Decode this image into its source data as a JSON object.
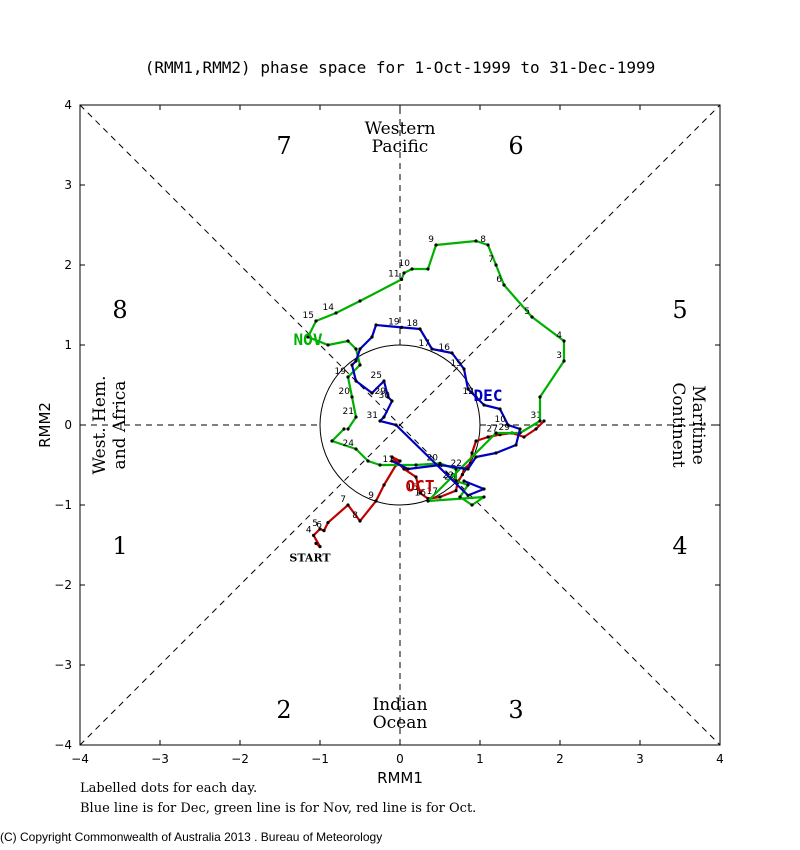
{
  "chart_data": {
    "type": "line",
    "title": "(RMM1,RMM2) phase space for  1-Oct-1999 to 31-Dec-1999",
    "xlabel": "RMM1",
    "ylabel": "RMM2",
    "xlim": [
      -4,
      4
    ],
    "ylim": [
      -4,
      4
    ],
    "xticks": [
      "−4",
      "−3",
      "−2",
      "−1",
      "0",
      "1",
      "2",
      "3",
      "4"
    ],
    "yticks": [
      "−4",
      "−3",
      "−2",
      "−1",
      "0",
      "1",
      "2",
      "3",
      "4"
    ],
    "phases": [
      {
        "label": "1",
        "x": -3.5,
        "y": -1.5
      },
      {
        "label": "2",
        "x": -1.45,
        "y": -3.55
      },
      {
        "label": "3",
        "x": 1.45,
        "y": -3.55
      },
      {
        "label": "4",
        "x": 3.5,
        "y": -1.5
      },
      {
        "label": "5",
        "x": 3.5,
        "y": 1.45
      },
      {
        "label": "6",
        "x": 1.45,
        "y": 3.5
      },
      {
        "label": "7",
        "x": -1.45,
        "y": 3.5
      },
      {
        "label": "8",
        "x": -3.5,
        "y": 1.45
      }
    ],
    "regions": {
      "top": [
        "Western",
        "Pacific"
      ],
      "bottom": [
        "Indian",
        "Ocean"
      ],
      "left": [
        "West. Hem.",
        "and Africa"
      ],
      "right": [
        "Maritime",
        "Continent"
      ]
    },
    "start_label": "START",
    "series": [
      {
        "name": "Oct",
        "label": "OCT",
        "color": "#c00000",
        "label_pos": [
          0.25,
          -0.83
        ],
        "points": [
          [
            -1.05,
            -1.48
          ],
          [
            -1.0,
            -1.52
          ],
          [
            -1.08,
            -1.38
          ],
          [
            -1.0,
            -1.3
          ],
          [
            -0.95,
            -1.32
          ],
          [
            -0.9,
            -1.22
          ],
          [
            -0.65,
            -1.0
          ],
          [
            -0.5,
            -1.2
          ],
          [
            -0.3,
            -0.95
          ],
          [
            -0.2,
            -0.75
          ],
          [
            -0.05,
            -0.5
          ],
          [
            0.0,
            -0.45
          ],
          [
            -0.1,
            -0.4
          ],
          [
            0.05,
            -0.55
          ],
          [
            0.2,
            -0.65
          ],
          [
            0.25,
            -0.85
          ],
          [
            0.35,
            -0.92
          ],
          [
            0.5,
            -0.9
          ],
          [
            0.7,
            -0.82
          ],
          [
            0.72,
            -0.72
          ],
          [
            0.78,
            -0.62
          ],
          [
            0.8,
            -0.55
          ],
          [
            0.88,
            -0.48
          ],
          [
            0.9,
            -0.35
          ],
          [
            0.95,
            -0.2
          ],
          [
            1.1,
            -0.15
          ],
          [
            1.25,
            -0.12
          ],
          [
            1.4,
            -0.1
          ],
          [
            1.55,
            -0.15
          ],
          [
            1.7,
            -0.05
          ],
          [
            1.8,
            0.05
          ]
        ],
        "labels": [
          {
            "t": "4",
            "i": 2
          },
          {
            "t": "5",
            "i": 3
          },
          {
            "t": "6",
            "i": 4
          },
          {
            "t": "7",
            "i": 6
          },
          {
            "t": "8",
            "i": 7
          },
          {
            "t": "9",
            "i": 8
          },
          {
            "t": "11",
            "i": 10
          },
          {
            "t": "15",
            "i": 15
          },
          {
            "t": "16",
            "i": 16
          },
          {
            "t": "17",
            "i": 17
          },
          {
            "t": "20",
            "i": 19
          },
          {
            "t": "22",
            "i": 21
          },
          {
            "t": "27",
            "i": 26
          },
          {
            "t": "29",
            "i": 27
          },
          {
            "t": "31",
            "i": 30
          }
        ]
      },
      {
        "name": "Nov",
        "label": "NOV",
        "color": "#00b000",
        "label_pos": [
          -1.15,
          1.0
        ],
        "points": [
          [
            -0.7,
            -0.05
          ],
          [
            -0.85,
            -0.2
          ],
          [
            -0.55,
            -0.3
          ],
          [
            -0.4,
            -0.45
          ],
          [
            -0.25,
            -0.5
          ],
          [
            0.2,
            -0.5
          ],
          [
            0.5,
            -0.48
          ],
          [
            0.7,
            -0.55
          ],
          [
            0.7,
            -0.7
          ],
          [
            0.85,
            -0.75
          ],
          [
            0.75,
            -0.9
          ],
          [
            0.9,
            -1.0
          ],
          [
            1.05,
            -0.9
          ],
          [
            0.35,
            -0.95
          ],
          [
            1.2,
            -0.1
          ],
          [
            1.5,
            -0.1
          ],
          [
            1.75,
            0.05
          ],
          [
            1.75,
            0.35
          ],
          [
            2.05,
            0.8
          ],
          [
            2.05,
            1.05
          ],
          [
            1.65,
            1.35
          ],
          [
            1.3,
            1.75
          ],
          [
            1.2,
            2.0
          ],
          [
            1.1,
            2.25
          ],
          [
            0.95,
            2.3
          ],
          [
            0.45,
            2.25
          ],
          [
            0.35,
            1.95
          ],
          [
            0.15,
            1.95
          ],
          [
            0.05,
            1.9
          ],
          [
            0.02,
            1.82
          ],
          [
            -0.5,
            1.55
          ],
          [
            -0.8,
            1.4
          ],
          [
            -1.05,
            1.3
          ],
          [
            -1.15,
            1.1
          ],
          [
            -0.9,
            1.0
          ],
          [
            -0.65,
            1.05
          ],
          [
            -0.55,
            0.95
          ],
          [
            -0.5,
            0.75
          ],
          [
            -0.65,
            0.6
          ],
          [
            -0.6,
            0.35
          ],
          [
            -0.55,
            0.1
          ],
          [
            -0.65,
            -0.05
          ]
        ],
        "labels": [
          {
            "t": "3",
            "i": 18
          },
          {
            "t": "4",
            "i": 19
          },
          {
            "t": "5",
            "i": 20
          },
          {
            "t": "6",
            "i": 21
          },
          {
            "t": "7",
            "i": 22
          },
          {
            "t": "8",
            "i": 23
          },
          {
            "t": "9",
            "i": 25
          },
          {
            "t": "10",
            "i": 27
          },
          {
            "t": "11",
            "i": 29
          },
          {
            "t": "14",
            "i": 31
          },
          {
            "t": "15",
            "i": 32
          },
          {
            "t": "19",
            "i": 38
          },
          {
            "t": "20",
            "i": 39
          },
          {
            "t": "21",
            "i": 40
          },
          {
            "t": "24",
            "i": 2
          },
          {
            "t": "20",
            "i": 6
          },
          {
            "t": "22",
            "i": 8
          }
        ]
      },
      {
        "name": "Dec",
        "label": "DEC",
        "color": "#0000c0",
        "label_pos": [
          1.1,
          0.3
        ],
        "points": [
          [
            -0.1,
            -0.45
          ],
          [
            0.1,
            -0.55
          ],
          [
            0.5,
            -0.5
          ],
          [
            0.85,
            -0.55
          ],
          [
            0.95,
            -0.4
          ],
          [
            1.2,
            -0.35
          ],
          [
            1.45,
            -0.25
          ],
          [
            1.5,
            -0.05
          ],
          [
            1.35,
            0.0
          ],
          [
            1.25,
            0.2
          ],
          [
            1.05,
            0.25
          ],
          [
            0.95,
            0.35
          ],
          [
            0.85,
            0.45
          ],
          [
            0.8,
            0.7
          ],
          [
            0.65,
            0.9
          ],
          [
            0.4,
            0.95
          ],
          [
            0.25,
            1.2
          ],
          [
            0.02,
            1.22
          ],
          [
            -0.3,
            1.25
          ],
          [
            -0.35,
            1.1
          ],
          [
            -0.5,
            0.95
          ],
          [
            -0.55,
            0.8
          ],
          [
            -0.6,
            0.75
          ],
          [
            -0.55,
            0.55
          ],
          [
            -0.35,
            0.4
          ],
          [
            -0.2,
            0.55
          ],
          [
            -0.15,
            0.35
          ],
          [
            -0.1,
            0.3
          ],
          [
            -0.2,
            0.1
          ],
          [
            -0.25,
            0.05
          ],
          [
            -0.05,
            0.0
          ],
          [
            0.85,
            -0.88
          ],
          [
            1.05,
            -0.8
          ],
          [
            0.8,
            -0.7
          ]
        ],
        "labels": [
          {
            "t": "10",
            "i": 8
          },
          {
            "t": "12",
            "i": 11
          },
          {
            "t": "15",
            "i": 13
          },
          {
            "t": "16",
            "i": 14
          },
          {
            "t": "17",
            "i": 15
          },
          {
            "t": "18",
            "i": 16
          },
          {
            "t": "19",
            "i": 17
          },
          {
            "t": "25",
            "i": 25
          },
          {
            "t": "29",
            "i": 26
          },
          {
            "t": "30",
            "i": 27
          },
          {
            "t": "31",
            "i": 29
          }
        ]
      }
    ]
  },
  "footnote": {
    "line1": "Labelled dots for each day.",
    "line2": "Blue line is for Dec, green line is for Nov, red line is for Oct."
  },
  "copyright": "(C) Copyright Commonwealth of Australia 2013 . Bureau of Meteorology"
}
